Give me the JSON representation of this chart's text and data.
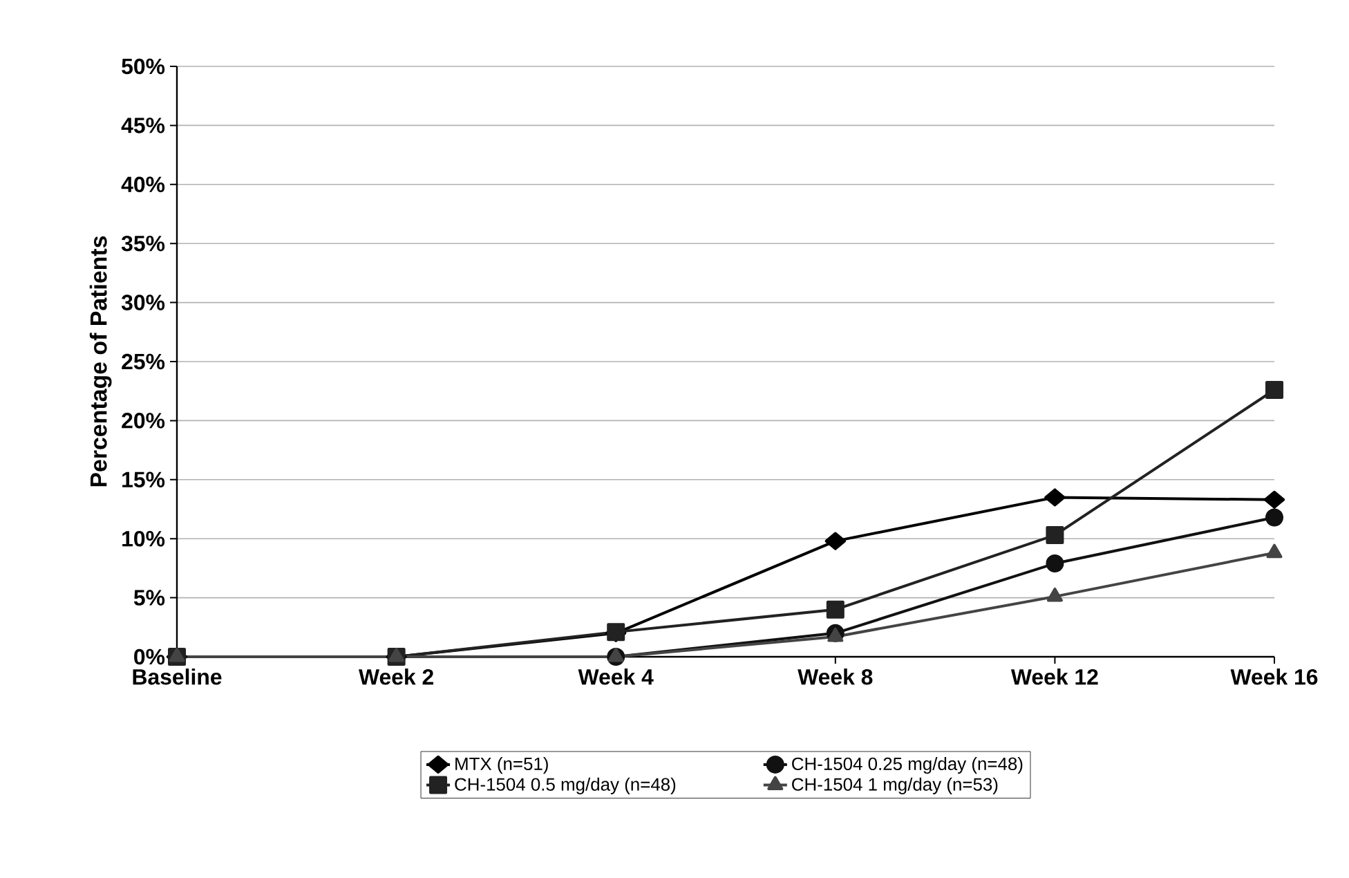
{
  "chart_data": {
    "type": "line",
    "ylabel": "Percentage of Patients",
    "categories": [
      "Baseline",
      "Week 2",
      "Week 4",
      "Week 8",
      "Week 12",
      "Week 16"
    ],
    "ylim": [
      0,
      50
    ],
    "yticks": [
      {
        "value": 0,
        "label": "0%"
      },
      {
        "value": 5,
        "label": "5%"
      },
      {
        "value": 10,
        "label": "10%"
      },
      {
        "value": 15,
        "label": "15%"
      },
      {
        "value": 20,
        "label": "20%"
      },
      {
        "value": 25,
        "label": "25%"
      },
      {
        "value": 30,
        "label": "30%"
      },
      {
        "value": 35,
        "label": "35%"
      },
      {
        "value": 40,
        "label": "40%"
      },
      {
        "value": 45,
        "label": "45%"
      },
      {
        "value": 50,
        "label": "50%"
      }
    ],
    "grid": "y",
    "legend": "bottom",
    "line_style": "solid",
    "series": [
      {
        "name": "MTX (n=51)",
        "color": "#000000",
        "marker": "diamond",
        "values": [
          0,
          0,
          2,
          9.8,
          13.5,
          13.3
        ]
      },
      {
        "name": "CH-1504 0.25 mg/day (n=48)",
        "color": "#111111",
        "marker": "circle",
        "values": [
          0,
          0,
          0,
          2.0,
          7.9,
          11.8
        ]
      },
      {
        "name": "CH-1504 0.5 mg/day (n=48)",
        "color": "#222222",
        "marker": "square",
        "values": [
          0,
          0,
          2.1,
          4.0,
          10.3,
          22.6
        ]
      },
      {
        "name": "CH-1504 1 mg/day (n=53)",
        "color": "#444444",
        "marker": "triangle",
        "values": [
          0,
          0,
          0,
          1.7,
          5.1,
          8.8
        ]
      }
    ]
  }
}
